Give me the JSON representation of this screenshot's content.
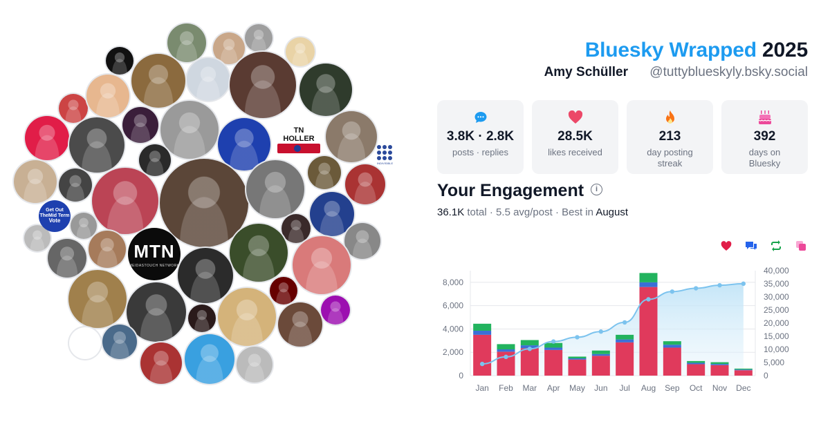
{
  "header": {
    "brand": "Bluesky Wrapped",
    "year": "2025",
    "display_name": "Amy Schüller",
    "handle": "@tuttyblueskyly.bsky.social"
  },
  "stats": [
    {
      "icon": "speech-bubble-icon",
      "value": "3.8K · 2.8K",
      "label": "posts · replies",
      "color": "#1d9bf0"
    },
    {
      "icon": "heart-icon",
      "value": "28.5K",
      "label": "likes received",
      "color": "#ec4868"
    },
    {
      "icon": "flame-icon",
      "value": "213",
      "label": "day posting streak",
      "color": "#f97316"
    },
    {
      "icon": "cake-icon",
      "value": "392",
      "label": "days on Bluesky",
      "color": "#ec4899"
    }
  ],
  "engagement": {
    "title": "Your Engagement",
    "total": "36.1K",
    "total_suffix": "total · 5.5 avg/post · Best in",
    "best_month": "August"
  },
  "legend_icons": [
    {
      "icon": "heart-icon",
      "color": "#e11d48"
    },
    {
      "icon": "reply-icon",
      "color": "#2563eb"
    },
    {
      "icon": "repost-icon",
      "color": "#16a34a"
    },
    {
      "icon": "quote-icon",
      "color": "#ec4899"
    }
  ],
  "avatar_labels": {
    "mtn_big": "MTN",
    "mtn_small": "MEIDASTOUCH NETWORK",
    "tn_holler": "TN HOLLER",
    "get_out_1": "Get Out",
    "get_out_2": "TheMid Term",
    "get_out_3": "Vote",
    "indivisible": "INDIVISIBLE"
  },
  "chart_data": {
    "type": "bar",
    "categories": [
      "Jan",
      "Feb",
      "Mar",
      "Apr",
      "May",
      "Jun",
      "Jul",
      "Aug",
      "Sep",
      "Oct",
      "Nov",
      "Dec"
    ],
    "series": [
      {
        "values": [
          3500,
          2050,
          2350,
          2200,
          1380,
          1700,
          2850,
          7600,
          2400,
          980,
          900,
          460
        ],
        "color": "#e03a5c"
      },
      {
        "values": [
          350,
          200,
          250,
          200,
          100,
          150,
          250,
          400,
          250,
          120,
          100,
          60
        ],
        "color": "#3b6fd6"
      },
      {
        "values": [
          600,
          450,
          450,
          400,
          150,
          300,
          400,
          800,
          300,
          150,
          150,
          80
        ],
        "color": "#22b35e"
      }
    ],
    "cumulative_line": {
      "values": [
        4450,
        7150,
        10200,
        13000,
        14630,
        16780,
        20280,
        29080,
        32030,
        33280,
        34430,
        35030
      ],
      "color": "#7cc3ee"
    },
    "ylim_left": [
      0,
      9000
    ],
    "yticks_left": [
      "0",
      "2,000",
      "4,000",
      "6,000",
      "8,000"
    ],
    "ylim_right": [
      0,
      40000
    ],
    "yticks_right": [
      "0",
      "5,000",
      "10,000",
      "15,000",
      "20,000",
      "25,000",
      "30,000",
      "35,000",
      "40,000"
    ],
    "grid": true
  }
}
